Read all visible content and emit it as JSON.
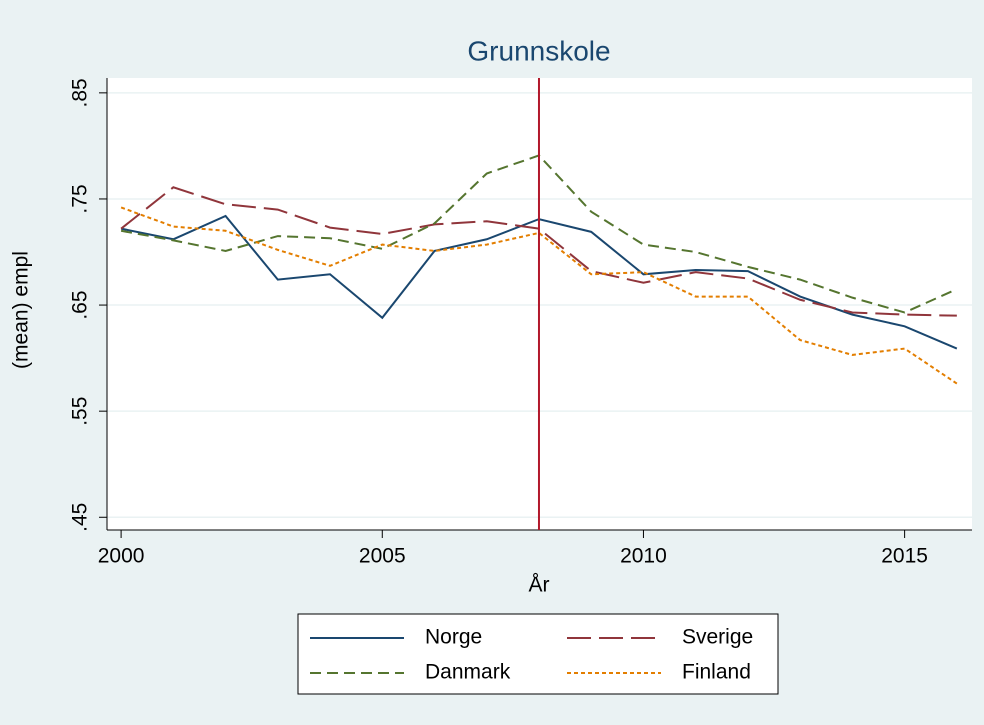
{
  "chart_data": {
    "type": "line",
    "title": "Grunnskole",
    "x_label": "År",
    "y_label": "(mean) empl",
    "x": [
      2000,
      2001,
      2002,
      2003,
      2004,
      2005,
      2006,
      2007,
      2008,
      2009,
      2010,
      2011,
      2012,
      2013,
      2014,
      2015,
      2016
    ],
    "series": [
      {
        "name": "Norge",
        "color": "#1a476f",
        "dash": "solid",
        "values": [
          0.722,
          0.712,
          0.734,
          0.674,
          0.679,
          0.638,
          0.701,
          0.712,
          0.731,
          0.719,
          0.679,
          0.683,
          0.682,
          0.658,
          0.641,
          0.63,
          0.609
        ]
      },
      {
        "name": "Sverige",
        "color": "#90353b",
        "dash": "longdash",
        "values": [
          0.722,
          0.761,
          0.745,
          0.74,
          0.723,
          0.717,
          0.726,
          0.729,
          0.722,
          0.682,
          0.671,
          0.681,
          0.675,
          0.655,
          0.643,
          0.641,
          0.64
        ]
      },
      {
        "name": "Danmark",
        "color": "#55752f",
        "dash": "dash",
        "values": [
          0.72,
          0.711,
          0.701,
          0.715,
          0.713,
          0.703,
          0.727,
          0.774,
          0.791,
          0.738,
          0.707,
          0.7,
          0.686,
          0.674,
          0.657,
          0.643,
          0.665
        ]
      },
      {
        "name": "Finland",
        "color": "#e37e00",
        "dash": "shortdash",
        "values": [
          0.742,
          0.724,
          0.72,
          0.702,
          0.687,
          0.707,
          0.701,
          0.707,
          0.718,
          0.679,
          0.681,
          0.658,
          0.658,
          0.617,
          0.603,
          0.609,
          0.576
        ]
      }
    ],
    "xlim": [
      1999.73,
      2016.29
    ],
    "xticks": [
      2000,
      2005,
      2010,
      2015
    ],
    "ylim": [
      0.438,
      0.864
    ],
    "yticks": [
      {
        "value": 0.45,
        "label": ".45"
      },
      {
        "value": 0.55,
        "label": ".55"
      },
      {
        "value": 0.65,
        "label": ".65"
      },
      {
        "value": 0.75,
        "label": ".75"
      },
      {
        "value": 0.85,
        "label": ".85"
      }
    ],
    "grid": true,
    "xline": {
      "value": 2008,
      "color": "#b2182b"
    },
    "legend": "bottom"
  }
}
